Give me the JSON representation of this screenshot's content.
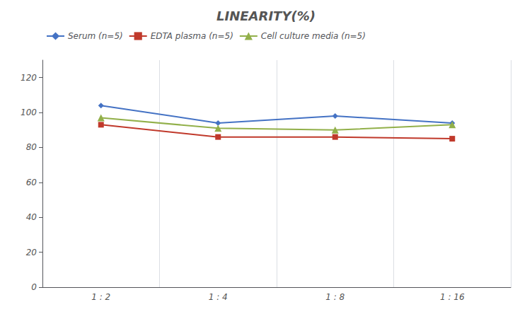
{
  "chart_data": {
    "type": "line",
    "title": "LINEARITY(%)",
    "categories": [
      "1 : 2",
      "1 : 4",
      "1 : 8",
      "1 : 16"
    ],
    "series": [
      {
        "name": "Serum (n=5)",
        "color": "#4472C4",
        "marker": "diamond",
        "values": [
          104,
          94,
          98,
          94
        ]
      },
      {
        "name": "EDTA plasma (n=5)",
        "color": "#C0392B",
        "marker": "square",
        "values": [
          93,
          86,
          86,
          85
        ]
      },
      {
        "name": "Cell culture media (n=5)",
        "color": "#92B04A",
        "marker": "triangle",
        "values": [
          97,
          91,
          90,
          93
        ]
      }
    ],
    "ylim": [
      0,
      130
    ],
    "yticks": [
      0,
      20,
      40,
      60,
      80,
      100,
      120
    ],
    "grid": "x",
    "legend": "upper left"
  }
}
